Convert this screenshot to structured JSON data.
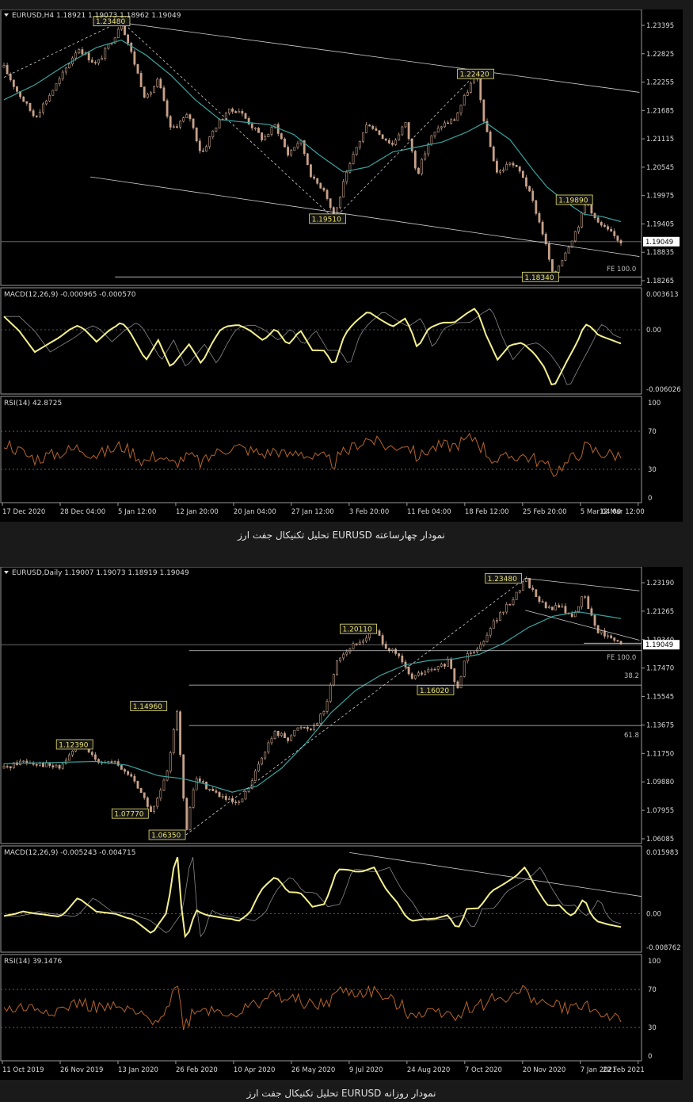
{
  "figures": [
    {
      "id": "h4",
      "caption": "تحلیل تکنیکال جفت ارز EURUSD نمودار چهارساعته",
      "chart_data": {
        "type": "candlestick",
        "header": "EURUSD,H4  1.18921 1.19073 1.18962 1.19049",
        "last_price_label": "1.19049",
        "price_panel": {
          "y_ticks": [
            "1.23395",
            "1.22825",
            "1.22255",
            "1.21685",
            "1.21115",
            "1.20545",
            "1.19975",
            "1.19405",
            "1.18835",
            "1.18265"
          ],
          "ylim": [
            1.18265,
            1.23395
          ],
          "close_path": [
            [
              0,
              1.2255
            ],
            [
              0.02,
              1.221
            ],
            [
              0.05,
              1.2155
            ],
            [
              0.09,
              1.223
            ],
            [
              0.12,
              1.2295
            ],
            [
              0.15,
              1.226
            ],
            [
              0.18,
              1.232
            ],
            [
              0.19,
              1.2348
            ],
            [
              0.21,
              1.227
            ],
            [
              0.23,
              1.219
            ],
            [
              0.25,
              1.223
            ],
            [
              0.27,
              1.213
            ],
            [
              0.3,
              1.216
            ],
            [
              0.32,
              1.208
            ],
            [
              0.34,
              1.213
            ],
            [
              0.36,
              1.2165
            ],
            [
              0.38,
              1.217
            ],
            [
              0.4,
              1.214
            ],
            [
              0.42,
              1.211
            ],
            [
              0.44,
              1.214
            ],
            [
              0.46,
              1.208
            ],
            [
              0.48,
              1.211
            ],
            [
              0.5,
              1.203
            ],
            [
              0.52,
              1.201
            ],
            [
              0.535,
              1.1951
            ],
            [
              0.55,
              1.202
            ],
            [
              0.57,
              1.209
            ],
            [
              0.59,
              1.2145
            ],
            [
              0.61,
              1.212
            ],
            [
              0.63,
              1.21
            ],
            [
              0.65,
              1.2145
            ],
            [
              0.67,
              1.204
            ],
            [
              0.69,
              1.211
            ],
            [
              0.71,
              1.214
            ],
            [
              0.73,
              1.215
            ],
            [
              0.75,
              1.2205
            ],
            [
              0.765,
              1.2242
            ],
            [
              0.78,
              1.2135
            ],
            [
              0.8,
              1.204
            ],
            [
              0.82,
              1.2065
            ],
            [
              0.84,
              1.204
            ],
            [
              0.86,
              1.1975
            ],
            [
              0.875,
              1.1915
            ],
            [
              0.89,
              1.1834
            ],
            [
              0.91,
              1.1885
            ],
            [
              0.93,
              1.1935
            ],
            [
              0.945,
              1.1989
            ],
            [
              0.96,
              1.1945
            ],
            [
              0.98,
              1.1925
            ],
            [
              1.0,
              1.19049
            ]
          ],
          "ma_path": [
            [
              0,
              1.219
            ],
            [
              0.05,
              1.222
            ],
            [
              0.1,
              1.226
            ],
            [
              0.15,
              1.2295
            ],
            [
              0.19,
              1.231
            ],
            [
              0.23,
              1.228
            ],
            [
              0.27,
              1.224
            ],
            [
              0.31,
              1.219
            ],
            [
              0.35,
              1.215
            ],
            [
              0.39,
              1.2145
            ],
            [
              0.43,
              1.214
            ],
            [
              0.47,
              1.212
            ],
            [
              0.51,
              1.208
            ],
            [
              0.55,
              1.2045
            ],
            [
              0.59,
              1.2055
            ],
            [
              0.63,
              1.2085
            ],
            [
              0.67,
              1.2095
            ],
            [
              0.71,
              1.2105
            ],
            [
              0.75,
              1.2125
            ],
            [
              0.78,
              1.2145
            ],
            [
              0.82,
              1.211
            ],
            [
              0.86,
              1.2045
            ],
            [
              0.88,
              1.2015
            ],
            [
              0.91,
              1.1985
            ],
            [
              0.94,
              1.196
            ],
            [
              0.97,
              1.1955
            ],
            [
              1.0,
              1.1945
            ]
          ],
          "labels": [
            {
              "text": "1.23480",
              "x": 0.145,
              "y": 1.2348
            },
            {
              "text": "1.22420",
              "x": 0.735,
              "y": 1.2242
            },
            {
              "text": "1.19510",
              "x": 0.495,
              "y": 1.1951
            },
            {
              "text": "1.19890",
              "x": 0.895,
              "y": 1.1989
            },
            {
              "text": "1.18340",
              "x": 0.84,
              "y": 1.1834
            }
          ],
          "fe_label": "FE 100.0"
        },
        "macd_panel": {
          "label": "MACD(12,26,9) -0.000965 -0.000570",
          "y_ticks": [
            "0.003613",
            "0.00",
            "-0.006026"
          ],
          "ylim": [
            -0.006026,
            0.003613
          ]
        },
        "rsi_panel": {
          "label": "RSI(14) 42.8725",
          "y_ticks": [
            "100",
            "70",
            "30",
            "0"
          ],
          "ylim": [
            0,
            100
          ]
        },
        "x_ticks": [
          "17 Dec 2020",
          "28 Dec 04:00",
          "5 Jan 12:00",
          "12 Jan 20:00",
          "20 Jan 04:00",
          "27 Jan 12:00",
          "3 Feb 20:00",
          "11 Feb 04:00",
          "18 Feb 12:00",
          "25 Feb 20:00",
          "5 Mar 04:00",
          "12 Mar 12:00"
        ]
      }
    },
    {
      "id": "daily",
      "caption": "تحلیل تکنیکال جفت ارز EURUSD نمودار روزانه",
      "chart_data": {
        "type": "candlestick",
        "header": "EURUSD,Daily  1.19007 1.19073 1.18919 1.19049",
        "last_price_label": "1.19049",
        "price_panel": {
          "y_ticks": [
            "1.23190",
            "1.21265",
            "1.19340",
            "1.17470",
            "1.15545",
            "1.13675",
            "1.11750",
            "1.09880",
            "1.07955",
            "1.06085"
          ],
          "ylim": [
            1.06085,
            1.2319
          ],
          "close_path": [
            [
              0,
              1.108
            ],
            [
              0.03,
              1.113
            ],
            [
              0.06,
              1.111
            ],
            [
              0.09,
              1.108
            ],
            [
              0.12,
              1.1239
            ],
            [
              0.15,
              1.114
            ],
            [
              0.18,
              1.111
            ],
            [
              0.21,
              1.101
            ],
            [
              0.24,
              1.0777
            ],
            [
              0.265,
              1.105
            ],
            [
              0.28,
              1.1496
            ],
            [
              0.295,
              1.0635
            ],
            [
              0.31,
              1.102
            ],
            [
              0.33,
              1.095
            ],
            [
              0.36,
              1.087
            ],
            [
              0.38,
              1.083
            ],
            [
              0.4,
              1.097
            ],
            [
              0.42,
              1.118
            ],
            [
              0.44,
              1.132
            ],
            [
              0.46,
              1.128
            ],
            [
              0.48,
              1.136
            ],
            [
              0.5,
              1.135
            ],
            [
              0.52,
              1.147
            ],
            [
              0.54,
              1.181
            ],
            [
              0.56,
              1.188
            ],
            [
              0.58,
              1.193
            ],
            [
              0.6,
              1.2011
            ],
            [
              0.62,
              1.189
            ],
            [
              0.64,
              1.182
            ],
            [
              0.66,
              1.168
            ],
            [
              0.68,
              1.172
            ],
            [
              0.7,
              1.174
            ],
            [
              0.72,
              1.179
            ],
            [
              0.735,
              1.1602
            ],
            [
              0.75,
              1.186
            ],
            [
              0.77,
              1.188
            ],
            [
              0.79,
              1.204
            ],
            [
              0.81,
              1.213
            ],
            [
              0.83,
              1.224
            ],
            [
              0.845,
              1.2348
            ],
            [
              0.86,
              1.2245
            ],
            [
              0.88,
              1.214
            ],
            [
              0.9,
              1.2165
            ],
            [
              0.92,
              1.209
            ],
            [
              0.94,
              1.2235
            ],
            [
              0.96,
              1.201
            ],
            [
              0.98,
              1.195
            ],
            [
              1.0,
              1.19049
            ]
          ],
          "ma_path": [
            [
              0,
              1.111
            ],
            [
              0.05,
              1.1115
            ],
            [
              0.1,
              1.112
            ],
            [
              0.15,
              1.1125
            ],
            [
              0.2,
              1.11
            ],
            [
              0.25,
              1.103
            ],
            [
              0.29,
              1.101
            ],
            [
              0.33,
              1.097
            ],
            [
              0.37,
              1.092
            ],
            [
              0.41,
              1.096
            ],
            [
              0.45,
              1.108
            ],
            [
              0.49,
              1.125
            ],
            [
              0.53,
              1.145
            ],
            [
              0.57,
              1.16
            ],
            [
              0.61,
              1.17
            ],
            [
              0.65,
              1.177
            ],
            [
              0.69,
              1.18
            ],
            [
              0.73,
              1.181
            ],
            [
              0.77,
              1.184
            ],
            [
              0.81,
              1.1915
            ],
            [
              0.85,
              1.202
            ],
            [
              0.89,
              1.2095
            ],
            [
              0.93,
              1.2125
            ],
            [
              0.97,
              1.21
            ],
            [
              1.0,
              1.208
            ]
          ],
          "labels": [
            {
              "text": "1.23480",
              "x": 0.78,
              "y": 1.2348
            },
            {
              "text": "1.20110",
              "x": 0.545,
              "y": 1.2011
            },
            {
              "text": "1.16020",
              "x": 0.67,
              "y": 1.1602
            },
            {
              "text": "1.14960",
              "x": 0.205,
              "y": 1.1496
            },
            {
              "text": "1.12390",
              "x": 0.085,
              "y": 1.1239
            },
            {
              "text": "1.07770",
              "x": 0.175,
              "y": 1.0777
            },
            {
              "text": "1.06350",
              "x": 0.235,
              "y": 1.0635
            }
          ],
          "fib_labels": [
            "38.2",
            "61.8"
          ],
          "fe_label": "FE 100.0"
        },
        "macd_panel": {
          "label": "MACD(12,26,9) -0.005243 -0.004715",
          "y_ticks": [
            "0.015983",
            "0.00",
            "-0.008762"
          ],
          "ylim": [
            -0.008762,
            0.015983
          ]
        },
        "rsi_panel": {
          "label": "RSI(14) 39.1476",
          "y_ticks": [
            "100",
            "70",
            "30",
            "0"
          ],
          "ylim": [
            0,
            100
          ]
        },
        "x_ticks": [
          "11 Oct 2019",
          "26 Nov 2019",
          "13 Jan 2020",
          "26 Feb 2020",
          "10 Apr 2020",
          "26 May 2020",
          "9 Jul 2020",
          "24 Aug 2020",
          "7 Oct 2020",
          "20 Nov 2020",
          "7 Jan 2021",
          "22 Feb 2021"
        ]
      }
    }
  ],
  "colors": {
    "background": "#000000",
    "frame": "#9a9a9a",
    "candle": "#c8a28a",
    "ma": "#3aa39f",
    "macd": "#f5f08c",
    "signal": "#8a8a8a",
    "rsi": "#b5642a",
    "trendline": "#cfcfcf",
    "label_border": "#e8e070",
    "label_text": "#e8e070",
    "text": "#d8d8d8"
  }
}
